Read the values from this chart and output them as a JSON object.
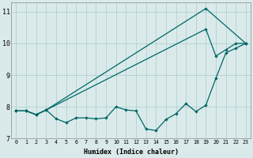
{
  "title": "",
  "xlabel": "Humidex (Indice chaleur)",
  "ylabel": "",
  "bg_color": "#daeaea",
  "grid_color": "#aacccc",
  "line_color": "#006666",
  "xlim": [
    -0.5,
    23.5
  ],
  "ylim": [
    7.0,
    11.3
  ],
  "xticks": [
    0,
    1,
    2,
    3,
    4,
    5,
    6,
    7,
    8,
    9,
    10,
    11,
    12,
    13,
    14,
    15,
    16,
    17,
    18,
    19,
    20,
    21,
    22,
    23
  ],
  "yticks": [
    7,
    8,
    9,
    10,
    11
  ],
  "series": {
    "line1": [
      7.87,
      7.87,
      7.75,
      7.9,
      null,
      null,
      null,
      null,
      null,
      null,
      null,
      null,
      null,
      null,
      null,
      null,
      null,
      null,
      null,
      11.1,
      null,
      null,
      null,
      10.0
    ],
    "line2": [
      7.87,
      7.87,
      7.75,
      7.9,
      null,
      null,
      null,
      null,
      null,
      null,
      null,
      null,
      null,
      null,
      null,
      null,
      null,
      null,
      null,
      10.45,
      9.6,
      9.8,
      10.0,
      10.0
    ],
    "line3": [
      7.87,
      7.87,
      7.75,
      7.9,
      7.62,
      7.5,
      7.65,
      7.65,
      7.62,
      7.65,
      8.0,
      7.9,
      7.87,
      7.3,
      7.25,
      7.6,
      7.78,
      8.1,
      7.85,
      8.05,
      8.9,
      9.7,
      9.85,
      10.0
    ]
  }
}
